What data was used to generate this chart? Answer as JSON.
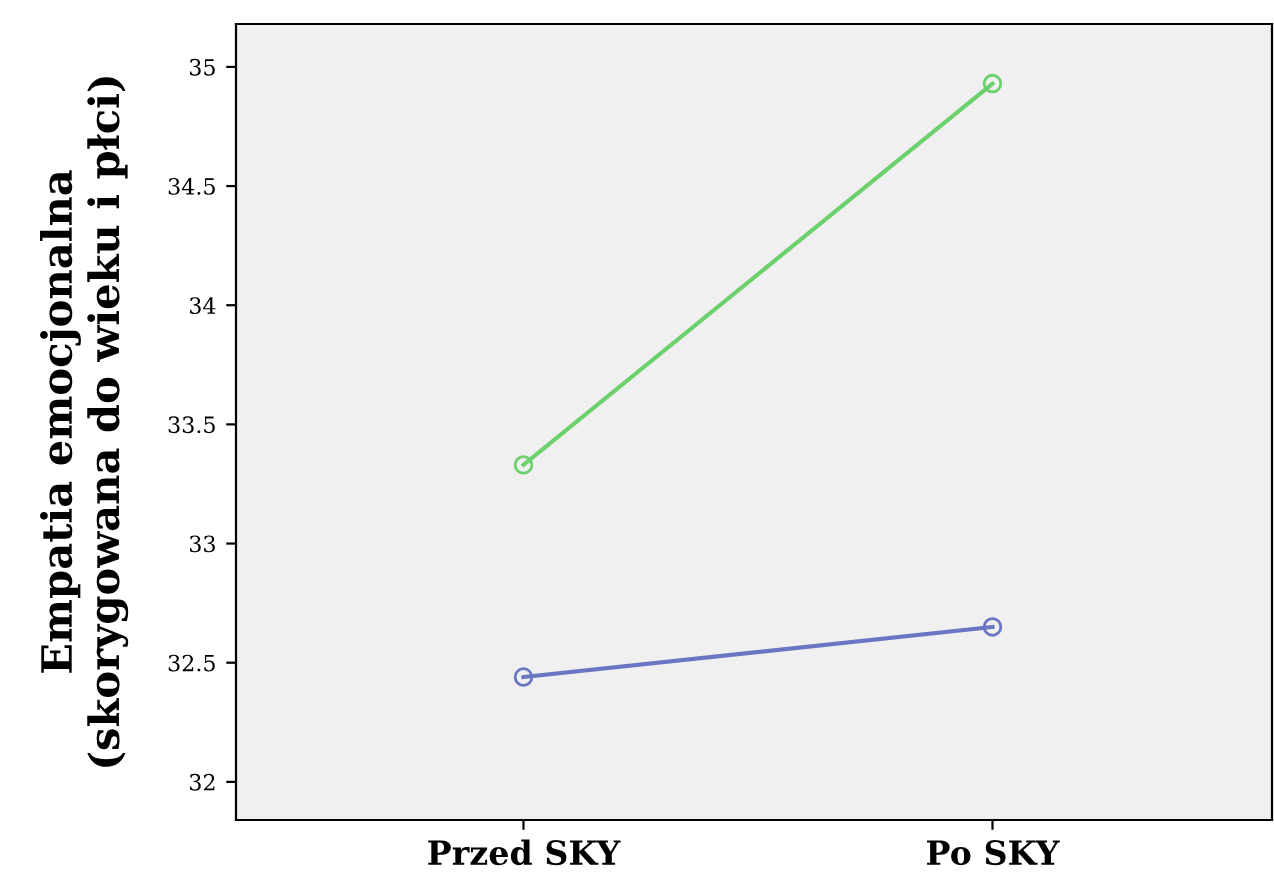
{
  "chart_data": {
    "type": "line",
    "ylabel": "Empatia emocjonalna\n(skorygowana do wieku i płci)",
    "categories": [
      "Przed SKY",
      "Po SKY"
    ],
    "series": [
      {
        "color": "#6cd06c",
        "values": [
          33.33,
          34.93
        ]
      },
      {
        "color": "#6a75c4",
        "values": [
          32.44,
          32.65
        ]
      }
    ],
    "ylim": [
      31.84,
      35.18
    ],
    "yticks": [
      32,
      32.5,
      33,
      33.5,
      34,
      34.5,
      35
    ],
    "marker": "circle",
    "line_style": "solid",
    "grid": false,
    "legend": false
  }
}
